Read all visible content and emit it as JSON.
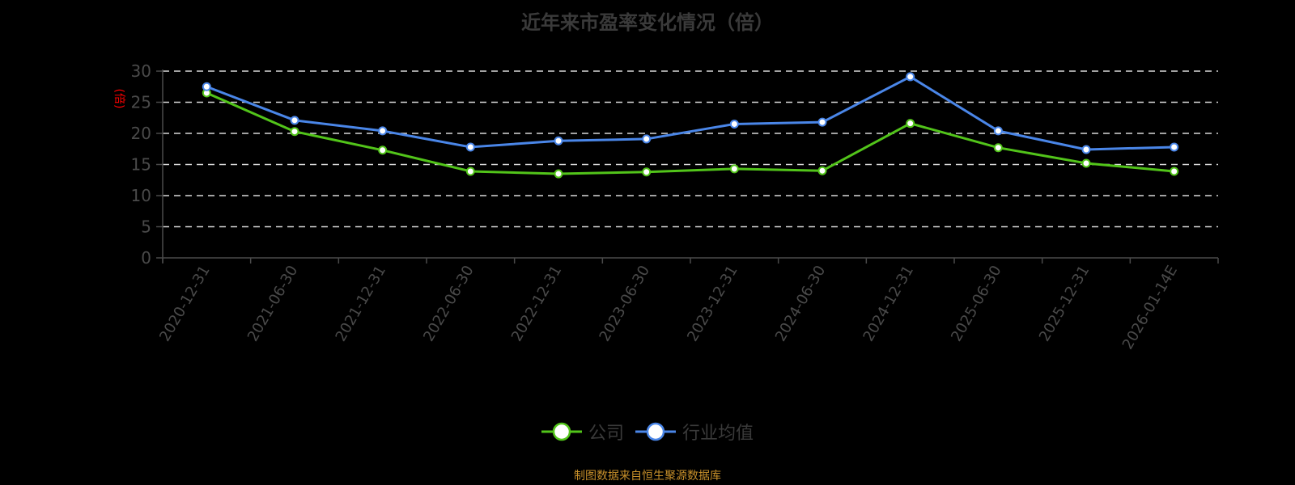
{
  "title": "近年来市盈率变化情况（倍）",
  "footer": "制图数据来自恒生聚源数据库",
  "colors": {
    "company": "#52c41a",
    "industry": "#4a86e8",
    "axis_label_red": "#ff0000",
    "grid": "#d9d9d9",
    "axis": "#4a4a4a",
    "footer": "#c8902a"
  },
  "legend": [
    {
      "name": "公司",
      "color": "#52c41a"
    },
    {
      "name": "行业均值",
      "color": "#4a86e8"
    }
  ],
  "chart_data": {
    "type": "line",
    "title": "近年来市盈率变化情况（倍）",
    "xlabel": "",
    "ylabel": "(倍)",
    "ylim": [
      0,
      30
    ],
    "yticks": [
      0,
      5,
      10,
      15,
      20,
      25,
      30
    ],
    "grid": true,
    "legend_position": "bottom",
    "categories": [
      "2020-12-31",
      "2021-06-30",
      "2021-12-31",
      "2022-06-30",
      "2022-12-31",
      "2023-06-30",
      "2023-12-31",
      "2024-06-30",
      "2024-12-31",
      "2025-06-30",
      "2025-12-31",
      "2026-01-14E"
    ],
    "series": [
      {
        "name": "公司",
        "color": "#52c41a",
        "values": [
          26.5,
          20.3,
          17.3,
          13.9,
          13.5,
          13.8,
          14.3,
          14.0,
          21.6,
          17.7,
          15.2,
          13.9
        ]
      },
      {
        "name": "行业均值",
        "color": "#4a86e8",
        "values": [
          27.5,
          22.1,
          20.4,
          17.8,
          18.8,
          19.1,
          21.5,
          21.8,
          29.1,
          20.4,
          17.4,
          17.8
        ]
      }
    ]
  }
}
